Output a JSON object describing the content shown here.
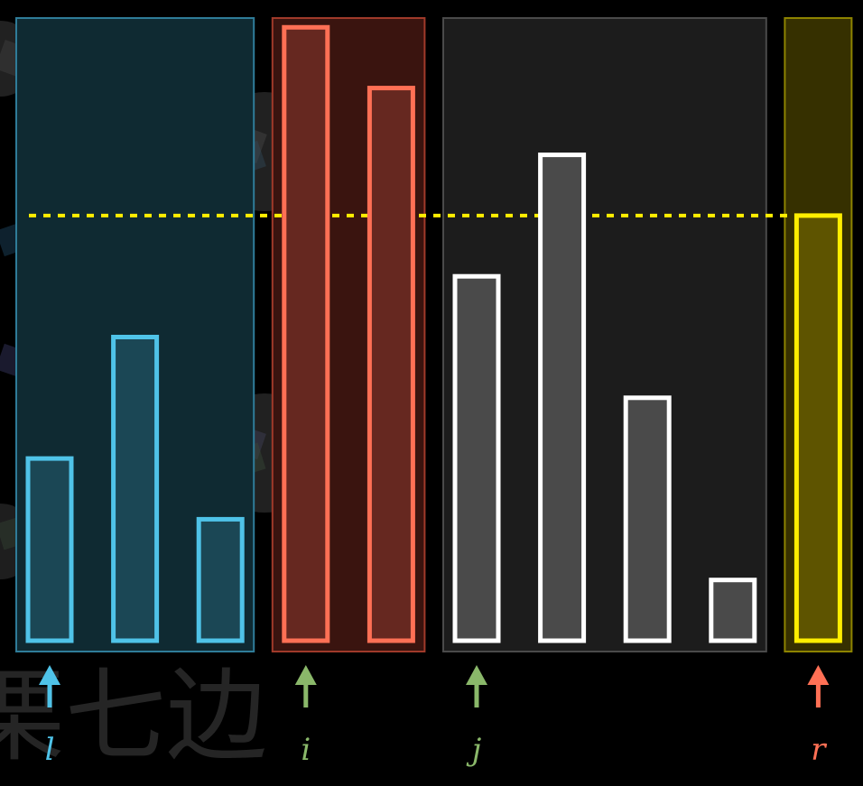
{
  "colors": {
    "background": "#000000",
    "less": "#4fc3e8",
    "equal": "#ff7055",
    "unvisited": "#ffffff",
    "pivot": "#ffee00",
    "pointer_lj": "#8ab86a",
    "pointer_ir": "#ff7055"
  },
  "watermark": {
    "text": "栗七边"
  },
  "pivot_value": 7,
  "regions": [
    {
      "name": "less-than-pivot",
      "color": "less",
      "from": 0,
      "to": 2
    },
    {
      "name": "equal-to-pivot",
      "color": "equal",
      "from": 3,
      "to": 4
    },
    {
      "name": "unprocessed",
      "color": "unvisited",
      "from": 5,
      "to": 8
    },
    {
      "name": "pivot-element",
      "color": "pivot",
      "from": 9,
      "to": 9
    }
  ],
  "bars": [
    {
      "value": 3,
      "state": "less"
    },
    {
      "value": 5,
      "state": "less"
    },
    {
      "value": 2,
      "state": "less"
    },
    {
      "value": 10.1,
      "state": "equal"
    },
    {
      "value": 9.1,
      "state": "equal"
    },
    {
      "value": 6,
      "state": "unvisited"
    },
    {
      "value": 8,
      "state": "unvisited"
    },
    {
      "value": 4,
      "state": "unvisited"
    },
    {
      "value": 1,
      "state": "unvisited"
    },
    {
      "value": 7,
      "state": "pivot"
    }
  ],
  "pointers": [
    {
      "label": "l",
      "index": 0,
      "color": "less"
    },
    {
      "label": "i",
      "index": 3,
      "color": "pointer_lj"
    },
    {
      "label": "j",
      "index": 5,
      "color": "pointer_lj"
    },
    {
      "label": "r",
      "index": 9,
      "color": "pointer_ir"
    }
  ]
}
